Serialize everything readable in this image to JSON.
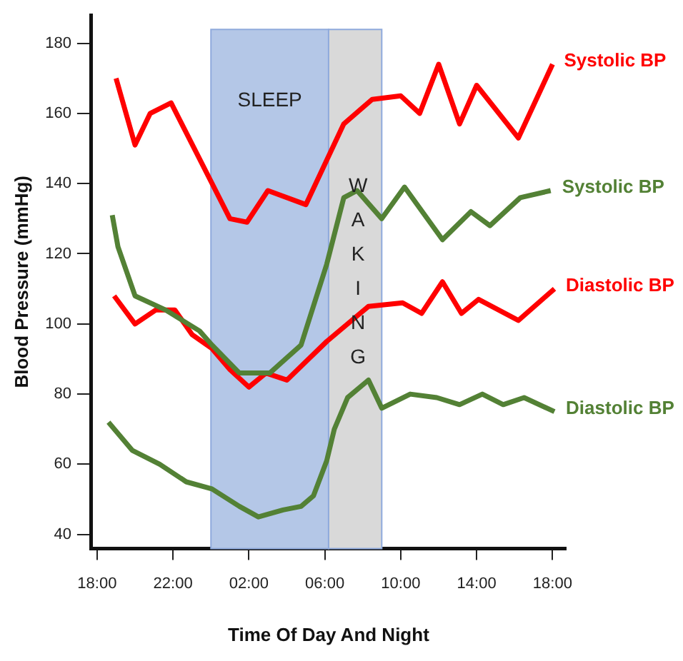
{
  "chart_data": {
    "type": "line",
    "xlabel": "Time Of Day And Night",
    "ylabel": "Blood Pressure (mmHg)",
    "xlim": [
      "--01-01T17:42",
      "--01-02T18:42"
    ],
    "ylim": [
      36,
      188
    ],
    "xticks": [
      {
        "value": "--01-01T18:00",
        "label": "18:00"
      },
      {
        "value": "--01-01T22:00",
        "label": "22:00"
      },
      {
        "value": "--01-02T02:00",
        "label": "02:00"
      },
      {
        "value": "--01-02T06:00",
        "label": "06:00"
      },
      {
        "value": "--01-02T10:00",
        "label": "10:00"
      },
      {
        "value": "--01-02T14:00",
        "label": "14:00"
      },
      {
        "value": "--01-02T18:00",
        "label": "18:00"
      }
    ],
    "yticks": [
      40,
      60,
      80,
      100,
      120,
      140,
      160,
      180
    ],
    "grid": false,
    "legend": false,
    "marker": "none",
    "line_style": "solid",
    "bands": [
      {
        "axis": "x",
        "from": "--01-02T00:00",
        "to": "--01-02T06:12",
        "label": "SLEEP",
        "color": "#b4c7e7"
      },
      {
        "axis": "x",
        "from": "--01-02T06:12",
        "to": "--01-02T09:00",
        "label": "WAKING",
        "color": "#d9d9d9"
      }
    ],
    "series": [
      {
        "name": "Systolic BP",
        "color": "#ff0000",
        "x": [
          "--01-01T19:00",
          "--01-01T20:00",
          "--01-01T20:48",
          "--01-01T21:54",
          "--01-02T01:00",
          "--01-02T01:54",
          "--01-02T03:00",
          "--01-02T05:00",
          "--01-02T07:00",
          "--01-02T08:30",
          "--01-02T10:00",
          "--01-02T11:00",
          "--01-02T12:00",
          "--01-02T13:06",
          "--01-02T14:00",
          "--01-02T16:12",
          "--01-02T18:00"
        ],
        "values": [
          170,
          151,
          160,
          163,
          130,
          129,
          138,
          134,
          157,
          164,
          165,
          160,
          174,
          157,
          168,
          153,
          174
        ]
      },
      {
        "name": "Systolic BP",
        "color": "#538135",
        "x": [
          "--01-01T18:48",
          "--01-01T19:06",
          "--01-01T20:00",
          "--01-01T21:36",
          "--01-01T23:24",
          "--01-02T00:03",
          "--01-02T01:30",
          "--01-02T03:06",
          "--01-02T04:45",
          "--01-02T06:06",
          "--01-02T07:00",
          "--01-02T07:42",
          "--01-02T09:00",
          "--01-02T10:12",
          "--01-02T12:12",
          "--01-02T13:42",
          "--01-02T14:42",
          "--01-02T16:18",
          "--01-02T17:54"
        ],
        "values": [
          131,
          122,
          108,
          104,
          98,
          94,
          86,
          86,
          94,
          117,
          136,
          138,
          130,
          139,
          124,
          132,
          128,
          136,
          138
        ]
      },
      {
        "name": "Diastolic BP",
        "color": "#ff0000",
        "x": [
          "--01-01T18:54",
          "--01-01T20:00",
          "--01-01T21:06",
          "--01-01T22:06",
          "--01-01T23:00",
          "--01-02T00:03",
          "--01-02T01:00",
          "--01-02T02:00",
          "--01-02T02:54",
          "--01-02T04:00",
          "--01-02T06:06",
          "--01-02T08:18",
          "--01-02T10:06",
          "--01-02T11:06",
          "--01-02T12:12",
          "--01-02T13:12",
          "--01-02T14:06",
          "--01-02T16:12",
          "--01-02T18:06"
        ],
        "values": [
          108,
          100,
          104,
          104,
          97,
          93,
          87,
          82,
          86,
          84,
          95,
          105,
          106,
          103,
          112,
          103,
          107,
          101,
          110
        ]
      },
      {
        "name": "Diastolic BP",
        "color": "#538135",
        "x": [
          "--01-01T18:36",
          "--01-01T19:51",
          "--01-01T21:18",
          "--01-01T22:42",
          "--01-02T00:03",
          "--01-02T01:30",
          "--01-02T02:30",
          "--01-02T03:48",
          "--01-02T04:45",
          "--01-02T05:24",
          "--01-02T06:06",
          "--01-02T06:30",
          "--01-02T07:12",
          "--01-02T08:18",
          "--01-02T09:00",
          "--01-02T10:30",
          "--01-02T11:54",
          "--01-02T13:06",
          "--01-02T14:18",
          "--01-02T15:24",
          "--01-02T16:30",
          "--01-02T18:06"
        ],
        "values": [
          72,
          64,
          60,
          55,
          53,
          48,
          45,
          47,
          48,
          51,
          61,
          70,
          79,
          84,
          76,
          80,
          79,
          77,
          80,
          77,
          79,
          75
        ]
      }
    ]
  }
}
